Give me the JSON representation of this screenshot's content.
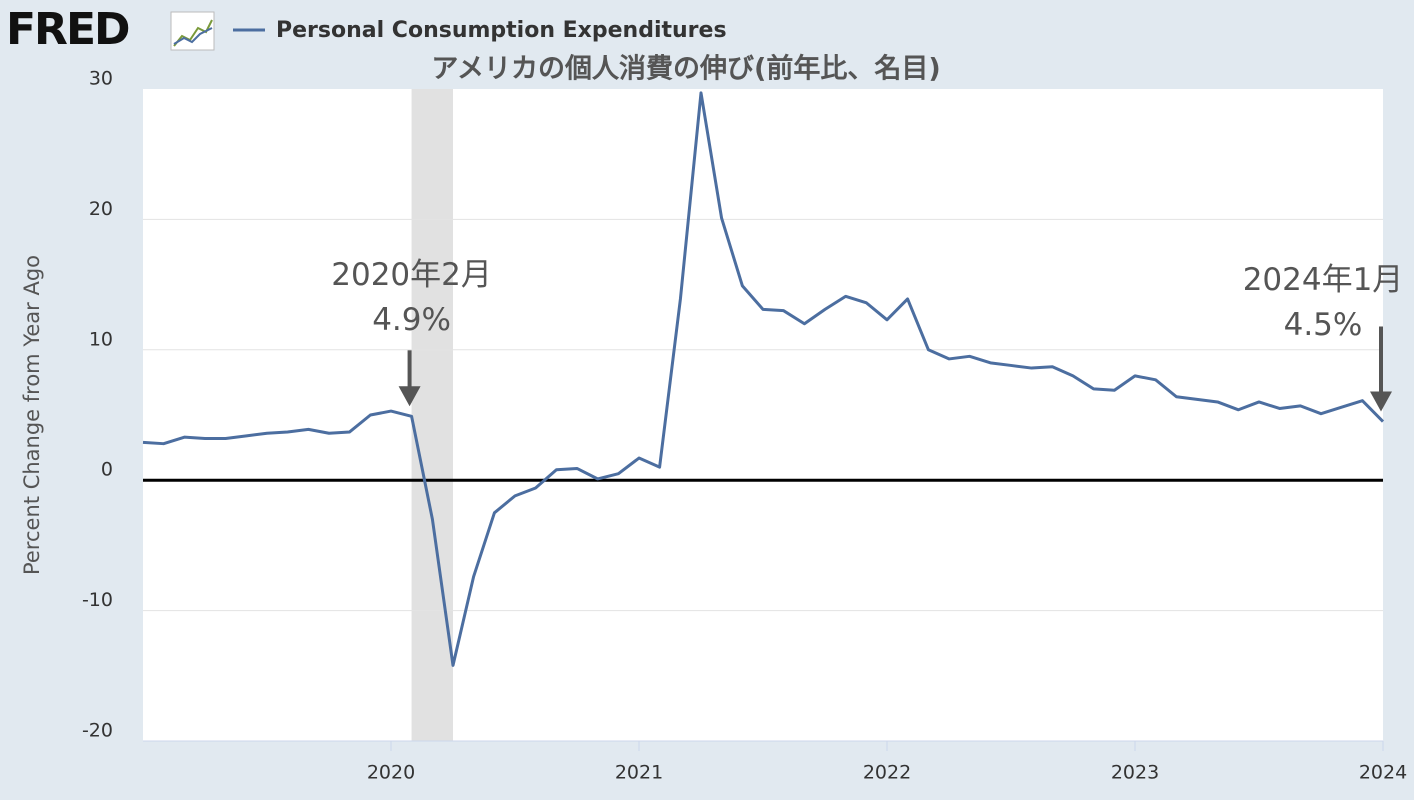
{
  "logo": "FRED",
  "chart_data": {
    "type": "line",
    "title": "アメリカの個人消費の伸び(前年比、名目)",
    "ylabel": "Percent Change from Year Ago",
    "x": [
      2019,
      2019.083,
      2019.167,
      2019.25,
      2019.333,
      2019.417,
      2019.5,
      2019.583,
      2019.667,
      2019.75,
      2019.833,
      2019.917,
      2020,
      2020.083,
      2020.167,
      2020.25,
      2020.333,
      2020.417,
      2020.5,
      2020.583,
      2020.667,
      2020.75,
      2020.833,
      2020.917,
      2021,
      2021.083,
      2021.167,
      2021.25,
      2021.333,
      2021.417,
      2021.5,
      2021.583,
      2021.667,
      2021.75,
      2021.833,
      2021.917,
      2022,
      2022.083,
      2022.167,
      2022.25,
      2022.333,
      2022.417,
      2022.5,
      2022.583,
      2022.667,
      2022.75,
      2022.833,
      2022.917,
      2023,
      2023.083,
      2023.167,
      2023.25,
      2023.333,
      2023.417,
      2023.5,
      2023.583,
      2023.667,
      2023.75,
      2023.833,
      2023.917,
      2024
    ],
    "series": [
      {
        "name": "Personal Consumption Expenditures",
        "color": "#4c6ea0",
        "values": [
          2.9,
          2.8,
          3.3,
          3.2,
          3.2,
          3.4,
          3.6,
          3.7,
          3.9,
          3.6,
          3.7,
          5.0,
          5.3,
          4.9,
          -3.0,
          -14.2,
          -7.4,
          -2.5,
          -1.2,
          -0.6,
          0.8,
          0.9,
          0.1,
          0.5,
          1.7,
          1.0,
          13.9,
          29.7,
          20.1,
          14.9,
          13.1,
          13.0,
          12.0,
          13.1,
          14.1,
          13.6,
          12.3,
          13.9,
          10.0,
          9.3,
          9.5,
          9.0,
          8.8,
          8.6,
          8.7,
          8.0,
          7.0,
          6.9,
          8.0,
          7.7,
          6.4,
          6.2,
          6.0,
          5.4,
          6.0,
          5.5,
          5.7,
          5.1,
          5.6,
          6.1,
          4.5
        ]
      }
    ],
    "recession": [
      2020.083,
      2020.25
    ],
    "hline": 0,
    "xlim": [
      2019,
      2024
    ],
    "xticks": [
      2020,
      2021,
      2022,
      2023,
      2024
    ],
    "ylim": [
      -20,
      30
    ],
    "yticks": [
      -20,
      -10,
      0,
      10,
      20,
      30
    ],
    "grid": true,
    "annotations": [
      {
        "text": "2020年2月",
        "value_label": "4.9%",
        "index": 13
      },
      {
        "text": "2024年1月",
        "value_label": "4.5%",
        "index": 60
      }
    ]
  }
}
